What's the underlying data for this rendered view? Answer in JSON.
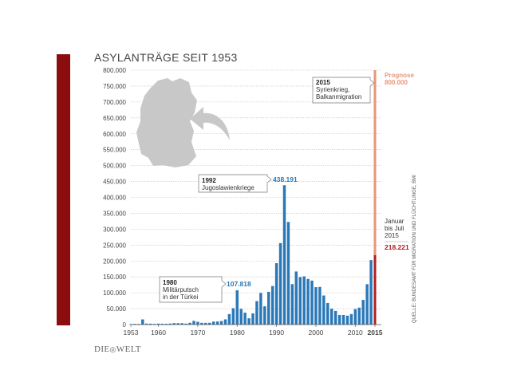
{
  "chart_data": {
    "type": "bar",
    "title": "ASYLANTRÄGE SEIT 1953",
    "ylim": [
      0,
      800000
    ],
    "yticks": [
      "0",
      "50.000",
      "100.000",
      "150.000",
      "200.000",
      "250.000",
      "300.000",
      "350.000",
      "400.000",
      "450.000",
      "500.000",
      "550.000",
      "600.000",
      "650.000",
      "700.000",
      "750.000",
      "800.000"
    ],
    "xlim": [
      1953,
      2015
    ],
    "xticks": [
      {
        "year": 1953,
        "label": "1953"
      },
      {
        "year": 1960,
        "label": "1960"
      },
      {
        "year": 1970,
        "label": "1970"
      },
      {
        "year": 1980,
        "label": "1980"
      },
      {
        "year": 1990,
        "label": "1990"
      },
      {
        "year": 2000,
        "label": "2000"
      },
      {
        "year": 2010,
        "label": "2010"
      },
      {
        "year": 2015,
        "label": "2015"
      }
    ],
    "years": [
      1953,
      1954,
      1955,
      1956,
      1957,
      1958,
      1959,
      1960,
      1961,
      1962,
      1963,
      1964,
      1965,
      1966,
      1967,
      1968,
      1969,
      1970,
      1971,
      1972,
      1973,
      1974,
      1975,
      1976,
      1977,
      1978,
      1979,
      1980,
      1981,
      1982,
      1983,
      1984,
      1985,
      1986,
      1987,
      1988,
      1989,
      1990,
      1991,
      1992,
      1993,
      1994,
      1995,
      1996,
      1997,
      1998,
      1999,
      2000,
      2001,
      2002,
      2003,
      2004,
      2005,
      2006,
      2007,
      2008,
      2009,
      2010,
      2011,
      2012,
      2013,
      2014
    ],
    "values": [
      1906,
      2174,
      1926,
      16284,
      3112,
      2785,
      2267,
      2980,
      2722,
      2550,
      3239,
      4542,
      4337,
      4370,
      2992,
      5608,
      11664,
      8645,
      5388,
      5289,
      5595,
      9424,
      9627,
      11123,
      16410,
      33136,
      51493,
      107818,
      49391,
      37423,
      19737,
      35278,
      73832,
      99650,
      57379,
      103076,
      121318,
      193063,
      256112,
      438191,
      322599,
      127210,
      166951,
      149193,
      151700,
      143429,
      138319,
      117648,
      118306,
      91471,
      67848,
      50152,
      42908,
      30100,
      30303,
      28018,
      33033,
      48589,
      53347,
      77651,
      127023,
      202834
    ],
    "highlight_value": 800000,
    "partial_2015_value": 218221,
    "annotations": {
      "y1992": {
        "year": "1992",
        "text": "Jugoslawienkriege",
        "value": "438.191"
      },
      "y1980": {
        "year": "1980",
        "text1": "Militärputsch",
        "text2": "in der Türkei",
        "value": "107.818"
      },
      "y2015": {
        "year": "2015",
        "text1": "Syrienkrieg,",
        "text2": "Balkanmigration"
      },
      "prognose": {
        "label": "Prognose",
        "value": "800.000"
      },
      "januar": {
        "line1": "Januar",
        "line2": "bis Juli",
        "line3": "2015",
        "value": "218.221"
      }
    },
    "colors": {
      "bar": "#2a78b8",
      "prognose": "#e8967a",
      "partial": "#b31d1d",
      "map": "#c8c8c8",
      "grid": "#b0b0b0",
      "text": "#444444"
    }
  },
  "source": "QUELLE: BUNDESAMT FÜR MIGRATION UND FLÜCHTLINGE, BMI",
  "brand": "DIE WELT"
}
